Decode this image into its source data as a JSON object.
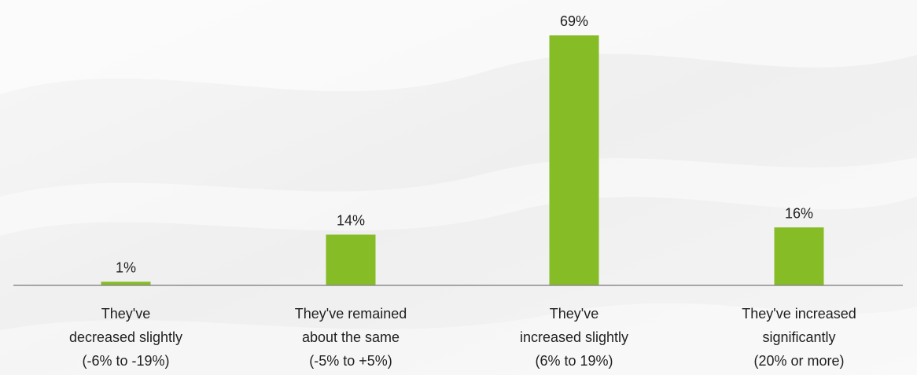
{
  "chart_data": {
    "type": "bar",
    "categories": [
      [
        "They've",
        "decreased slightly",
        "(-6% to -19%)"
      ],
      [
        "They've remained",
        "about the same",
        "(-5% to +5%)"
      ],
      [
        "They've",
        "increased slightly",
        "(6% to 19%)"
      ],
      [
        "They've increased",
        "significantly",
        "(20% or more)"
      ]
    ],
    "values": [
      1,
      14,
      69,
      16
    ],
    "value_labels": [
      "1%",
      "14%",
      "69%",
      "16%"
    ],
    "title": "",
    "xlabel": "",
    "ylabel": "",
    "ylim": [
      0,
      69
    ],
    "grid": false,
    "legend": "none"
  },
  "colors": {
    "bar": "#86bc25",
    "axis": "#8c8c8c",
    "text": "#1f1f1f"
  }
}
